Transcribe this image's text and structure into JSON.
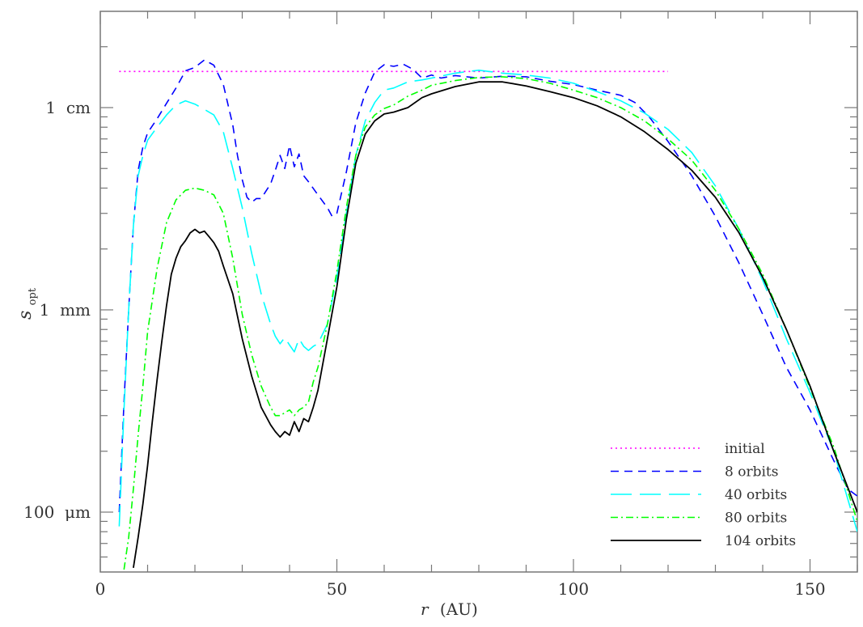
{
  "chart_data": {
    "type": "line",
    "title": "",
    "xlabel": "r (AU)",
    "xlabel_var": "r",
    "xlabel_unit": "(AU)",
    "ylabel": "s_opt",
    "ylabel_main": "s",
    "ylabel_sub": "opt",
    "xscale": "linear",
    "yscale": "log",
    "xlim": [
      0,
      160
    ],
    "ylim_mm": [
      0.053,
      30
    ],
    "x_ticks": [
      0,
      50,
      100,
      150
    ],
    "x_tick_labels": [
      "0",
      "50",
      "100",
      "150"
    ],
    "y_ticks_mm": [
      10,
      1,
      0.1
    ],
    "y_tick_labels": [
      "1  cm",
      "1  mm",
      "100  μm"
    ],
    "grid": false,
    "legend_position": "lower right",
    "units_note": "s values in mm",
    "series": [
      {
        "name": "initial",
        "color": "#ff00ff",
        "style": "dotted",
        "r": [
          4,
          120
        ],
        "s": [
          15.1,
          15.1
        ]
      },
      {
        "name": "8 orbits",
        "color": "#0000ff",
        "style": "dashed",
        "r": [
          4,
          5,
          6,
          7,
          8,
          9,
          10,
          12,
          14,
          16,
          18,
          20,
          22,
          24,
          26,
          28,
          29,
          30,
          31,
          32,
          33,
          34,
          36,
          37,
          38,
          39,
          40,
          41,
          42,
          43,
          44,
          46,
          48,
          49,
          50,
          52,
          54,
          56,
          58,
          60,
          62,
          64,
          66,
          68,
          70,
          72,
          75,
          80,
          85,
          90,
          95,
          100,
          105,
          110,
          113,
          116,
          120,
          125,
          130,
          135,
          140,
          145,
          150,
          155,
          158,
          160
        ],
        "s": [
          0.1,
          0.35,
          1.0,
          2.6,
          4.9,
          6.4,
          7.5,
          8.8,
          10.5,
          12.5,
          15.2,
          15.8,
          17.2,
          16.2,
          13.0,
          8.2,
          5.8,
          4.4,
          3.6,
          3.4,
          3.55,
          3.55,
          4.2,
          4.9,
          5.8,
          5.0,
          6.5,
          5.1,
          5.9,
          4.6,
          4.3,
          3.7,
          3.2,
          2.9,
          3.0,
          4.8,
          8.4,
          11.8,
          15.0,
          16.3,
          16.0,
          16.4,
          15.5,
          14.0,
          14.5,
          14.0,
          14.4,
          14.0,
          14.3,
          14.2,
          13.5,
          13.0,
          12.2,
          11.5,
          10.6,
          9.0,
          6.8,
          4.6,
          2.9,
          1.7,
          0.95,
          0.52,
          0.32,
          0.18,
          0.13,
          0.12
        ]
      },
      {
        "name": "40 orbits",
        "color": "#00ffff",
        "style": "long-dashed",
        "r": [
          4,
          5,
          6,
          7,
          8,
          9,
          10,
          12,
          14,
          16,
          18,
          20,
          22,
          24,
          26,
          28,
          30,
          32,
          34,
          36,
          37,
          38,
          39,
          40,
          41,
          42,
          43,
          44,
          45,
          46,
          48,
          50,
          52,
          54,
          56,
          58,
          60,
          62,
          65,
          68,
          70,
          75,
          80,
          85,
          90,
          95,
          100,
          105,
          110,
          115,
          120,
          125,
          130,
          135,
          140,
          145,
          150,
          155,
          160
        ],
        "s": [
          0.085,
          0.32,
          1.0,
          2.6,
          4.6,
          5.8,
          6.9,
          8.0,
          9.2,
          10.3,
          10.8,
          10.4,
          9.8,
          9.2,
          7.6,
          5.0,
          3.2,
          1.9,
          1.2,
          0.85,
          0.74,
          0.68,
          0.73,
          0.67,
          0.62,
          0.72,
          0.66,
          0.63,
          0.66,
          0.68,
          0.85,
          1.45,
          3.0,
          5.8,
          8.6,
          10.6,
          12.2,
          12.5,
          13.4,
          13.7,
          14.0,
          14.8,
          15.3,
          14.8,
          14.5,
          14.0,
          13.2,
          12.0,
          10.8,
          9.4,
          7.8,
          6.0,
          4.1,
          2.5,
          1.4,
          0.72,
          0.39,
          0.2,
          0.08
        ]
      },
      {
        "name": "80 orbits",
        "color": "#00ff00",
        "style": "dash-dot",
        "r": [
          5,
          6,
          7,
          8,
          9,
          10,
          12,
          14,
          16,
          18,
          20,
          22,
          24,
          26,
          28,
          30,
          32,
          34,
          36,
          37,
          38,
          39,
          40,
          41,
          42,
          43,
          44,
          45,
          46,
          48,
          50,
          52,
          54,
          56,
          58,
          60,
          62,
          65,
          68,
          70,
          75,
          80,
          85,
          90,
          95,
          100,
          105,
          110,
          115,
          120,
          125,
          130,
          135,
          140,
          145,
          150,
          155,
          160
        ],
        "s": [
          0.052,
          0.075,
          0.13,
          0.24,
          0.42,
          0.78,
          1.6,
          2.7,
          3.5,
          3.9,
          4.0,
          3.9,
          3.7,
          3.0,
          1.8,
          0.95,
          0.6,
          0.42,
          0.33,
          0.3,
          0.3,
          0.31,
          0.32,
          0.3,
          0.32,
          0.33,
          0.35,
          0.44,
          0.52,
          0.85,
          1.55,
          3.2,
          5.8,
          8.0,
          9.2,
          9.9,
          10.3,
          11.4,
          12.2,
          12.9,
          13.6,
          14.1,
          14.2,
          13.9,
          13.2,
          12.2,
          11.2,
          10.0,
          8.6,
          7.0,
          5.5,
          3.9,
          2.5,
          1.5,
          0.8,
          0.41,
          0.21,
          0.09
        ]
      },
      {
        "name": "104 orbits",
        "color": "#000000",
        "style": "solid",
        "r": [
          7,
          8,
          9,
          10,
          11,
          12,
          13,
          14,
          15,
          16,
          17,
          18,
          19,
          20,
          21,
          22,
          23,
          24,
          25,
          26,
          28,
          30,
          32,
          34,
          36,
          37,
          38,
          39,
          40,
          41,
          42,
          43,
          44,
          45,
          46,
          48,
          50,
          52,
          54,
          56,
          58,
          60,
          62,
          65,
          68,
          70,
          75,
          80,
          85,
          90,
          95,
          100,
          105,
          110,
          115,
          120,
          125,
          130,
          135,
          140,
          145,
          150,
          155,
          160
        ],
        "s": [
          0.053,
          0.075,
          0.11,
          0.17,
          0.28,
          0.45,
          0.7,
          1.05,
          1.5,
          1.8,
          2.05,
          2.2,
          2.4,
          2.5,
          2.4,
          2.45,
          2.3,
          2.15,
          1.95,
          1.65,
          1.2,
          0.72,
          0.47,
          0.33,
          0.27,
          0.25,
          0.235,
          0.25,
          0.24,
          0.28,
          0.25,
          0.29,
          0.28,
          0.33,
          0.4,
          0.72,
          1.3,
          2.8,
          5.3,
          7.4,
          8.6,
          9.3,
          9.5,
          10.0,
          11.2,
          11.7,
          12.7,
          13.4,
          13.4,
          12.8,
          12.0,
          11.2,
          10.2,
          9.0,
          7.6,
          6.2,
          4.9,
          3.6,
          2.4,
          1.45,
          0.8,
          0.42,
          0.2,
          0.1
        ]
      }
    ]
  }
}
